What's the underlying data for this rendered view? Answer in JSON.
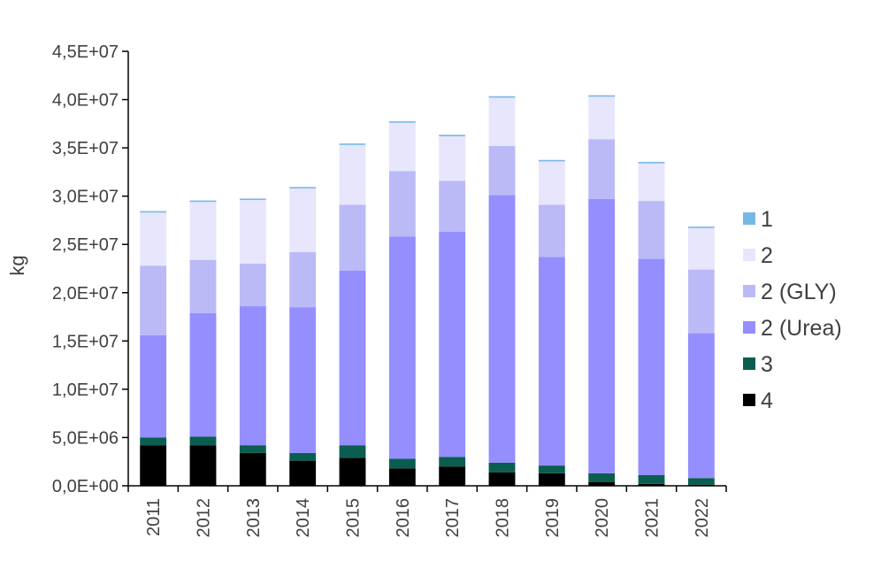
{
  "chart_data": {
    "type": "bar",
    "stacked": true,
    "title": "",
    "xlabel": "",
    "ylabel": "kg",
    "ylim": [
      0,
      45000000
    ],
    "yticks": [
      "0,0E+00",
      "5,0E+06",
      "1,0E+07",
      "1,5E+07",
      "2,0E+07",
      "2,5E+07",
      "3,0E+07",
      "3,5E+07",
      "4,0E+07",
      "4,5E+07"
    ],
    "categories": [
      "2011",
      "2012",
      "2013",
      "2014",
      "2015",
      "2016",
      "2017",
      "2018",
      "2019",
      "2020",
      "2021",
      "2022"
    ],
    "legend_position": "right",
    "grid": false,
    "series": [
      {
        "name": "4",
        "color": "#000000",
        "values": [
          4200000,
          4200000,
          3400000,
          2600000,
          2900000,
          1800000,
          2000000,
          1400000,
          1300000,
          400000,
          200000,
          100000
        ]
      },
      {
        "name": "3",
        "color": "#0b5e4f",
        "values": [
          800000,
          900000,
          800000,
          800000,
          1300000,
          1000000,
          1000000,
          1000000,
          800000,
          900000,
          900000,
          700000
        ]
      },
      {
        "name": "2 (Urea)",
        "color": "#958eff",
        "values": [
          10600000,
          12800000,
          14400000,
          15100000,
          18100000,
          23000000,
          23300000,
          27700000,
          21600000,
          28400000,
          22400000,
          15000000
        ]
      },
      {
        "name": "2 (GLY)",
        "color": "#bbbaf7",
        "values": [
          7200000,
          5500000,
          4400000,
          5700000,
          6800000,
          6800000,
          5300000,
          5100000,
          5400000,
          6200000,
          6000000,
          6600000
        ]
      },
      {
        "name": "2",
        "color": "#e7e6fc",
        "values": [
          5500000,
          6000000,
          6600000,
          6600000,
          6200000,
          5000000,
          4600000,
          5000000,
          4500000,
          4400000,
          3900000,
          4300000
        ]
      },
      {
        "name": "1",
        "color": "#77b9e6",
        "values": [
          150000,
          150000,
          150000,
          150000,
          150000,
          150000,
          150000,
          150000,
          150000,
          150000,
          150000,
          150000
        ]
      }
    ],
    "legend_order": [
      "1",
      "2",
      "2 (GLY)",
      "2 (Urea)",
      "3",
      "4"
    ]
  }
}
